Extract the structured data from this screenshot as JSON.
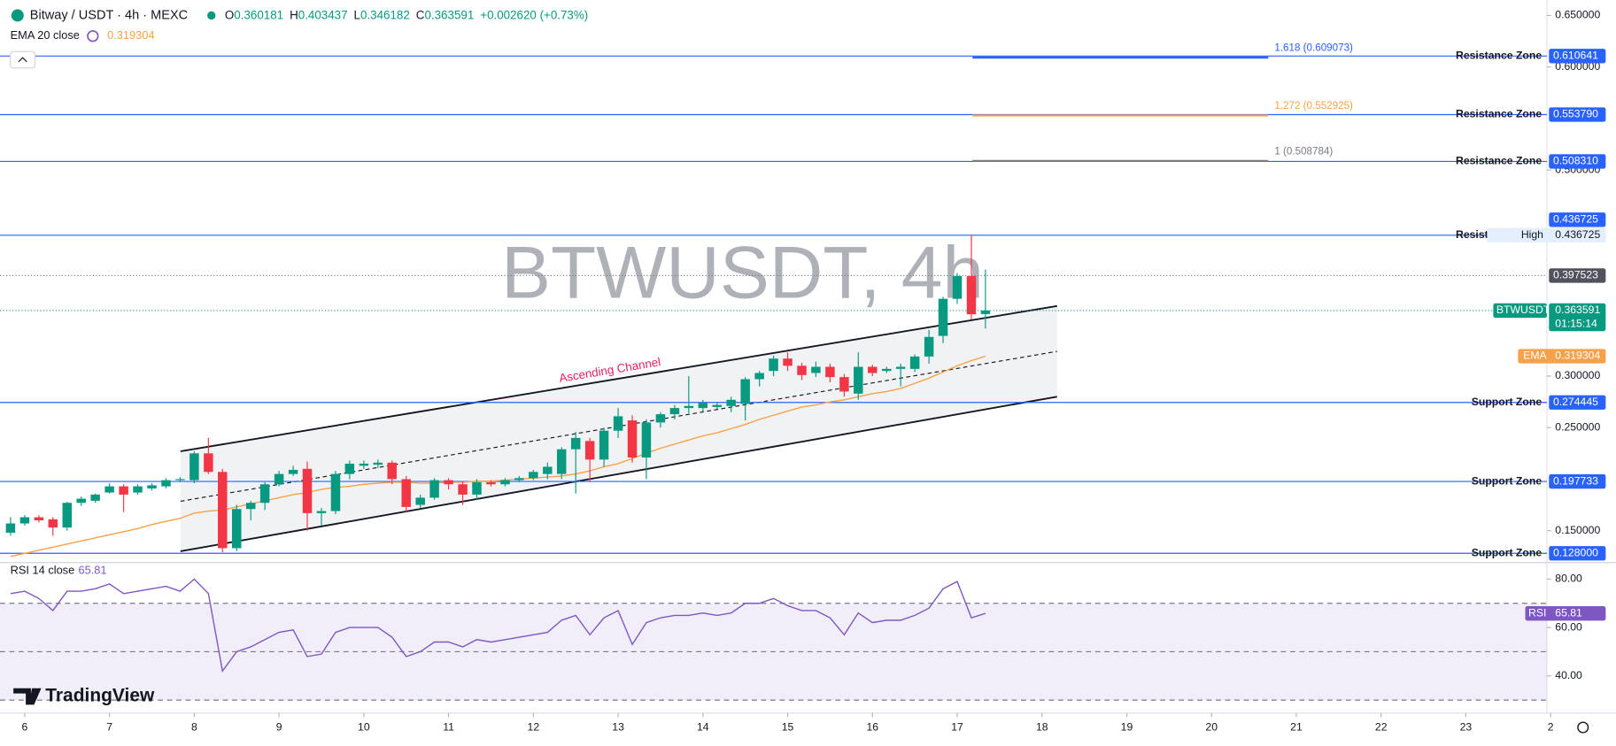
{
  "chart_data": {
    "type": "candlestick",
    "title": "Bitway / USDT · 4h · MEXC",
    "watermark": "BTWUSDT, 4h",
    "brand": "TradingView",
    "ohlc_legend": [
      {
        "name": "O",
        "value": 0.360181
      },
      {
        "name": "H",
        "value": 0.403437
      },
      {
        "name": "L",
        "value": 0.346182
      },
      {
        "name": "C",
        "value": 0.363591
      }
    ],
    "change_label": "+0.002620 (+0.73%)",
    "up_color": "#089981",
    "down_color": "#f23645",
    "x": [
      5.833,
      6,
      6.167,
      6.333,
      6.5,
      6.667,
      6.833,
      7,
      7.167,
      7.333,
      7.5,
      7.667,
      7.833,
      8,
      8.167,
      8.333,
      8.5,
      8.667,
      8.833,
      9,
      9.167,
      9.333,
      9.5,
      9.667,
      9.833,
      10,
      10.167,
      10.333,
      10.5,
      10.667,
      10.833,
      11,
      11.167,
      11.333,
      11.5,
      11.667,
      11.833,
      12,
      12.167,
      12.333,
      12.5,
      12.667,
      12.833,
      13,
      13.167,
      13.333,
      13.5,
      13.667,
      13.833,
      14,
      14.167,
      14.333,
      14.5,
      14.667,
      14.833,
      15,
      15.167,
      15.333,
      15.5,
      15.667,
      15.833,
      16,
      16.167,
      16.333,
      16.5,
      16.667,
      16.833,
      17,
      17.167,
      17.333
    ],
    "open": [
      0.148,
      0.157,
      0.163,
      0.161,
      0.153,
      0.177,
      0.179,
      0.187,
      0.193,
      0.187,
      0.191,
      0.193,
      0.199,
      0.199,
      0.225,
      0.207,
      0.133,
      0.171,
      0.177,
      0.195,
      0.205,
      0.21,
      0.167,
      0.169,
      0.205,
      0.213,
      0.214,
      0.216,
      0.2,
      0.175,
      0.182,
      0.199,
      0.195,
      0.185,
      0.197,
      0.195,
      0.199,
      0.201,
      0.205,
      0.205,
      0.229,
      0.237,
      0.219,
      0.247,
      0.257,
      0.221,
      0.255,
      0.263,
      0.269,
      0.269,
      0.27,
      0.271,
      0.273,
      0.297,
      0.305,
      0.317,
      0.31,
      0.303,
      0.309,
      0.299,
      0.283,
      0.309,
      0.305,
      0.307,
      0.307,
      0.319,
      0.339,
      0.375,
      0.397,
      0.360181
    ],
    "high": [
      0.163,
      0.165,
      0.165,
      0.163,
      0.178,
      0.183,
      0.186,
      0.196,
      0.195,
      0.195,
      0.196,
      0.201,
      0.202,
      0.227,
      0.24,
      0.21,
      0.175,
      0.179,
      0.197,
      0.208,
      0.213,
      0.217,
      0.172,
      0.208,
      0.218,
      0.218,
      0.219,
      0.218,
      0.203,
      0.185,
      0.201,
      0.201,
      0.198,
      0.2,
      0.199,
      0.201,
      0.203,
      0.209,
      0.216,
      0.231,
      0.246,
      0.24,
      0.25,
      0.269,
      0.262,
      0.258,
      0.265,
      0.272,
      0.3,
      0.277,
      0.275,
      0.28,
      0.299,
      0.305,
      0.32,
      0.323,
      0.313,
      0.314,
      0.312,
      0.302,
      0.323,
      0.311,
      0.309,
      0.312,
      0.321,
      0.345,
      0.377,
      0.4,
      0.437,
      0.403437
    ],
    "low": [
      0.145,
      0.155,
      0.158,
      0.145,
      0.15,
      0.174,
      0.177,
      0.186,
      0.168,
      0.185,
      0.189,
      0.191,
      0.197,
      0.196,
      0.205,
      0.129,
      0.13,
      0.16,
      0.17,
      0.193,
      0.203,
      0.15,
      0.155,
      0.166,
      0.2,
      0.21,
      0.211,
      0.195,
      0.168,
      0.172,
      0.18,
      0.19,
      0.175,
      0.18,
      0.193,
      0.193,
      0.197,
      0.199,
      0.2,
      0.2,
      0.186,
      0.197,
      0.212,
      0.24,
      0.216,
      0.2,
      0.25,
      0.258,
      0.264,
      0.265,
      0.268,
      0.265,
      0.257,
      0.29,
      0.3,
      0.305,
      0.296,
      0.299,
      0.294,
      0.28,
      0.277,
      0.3,
      0.303,
      0.29,
      0.304,
      0.312,
      0.332,
      0.37,
      0.355,
      0.346182
    ],
    "close": [
      0.157,
      0.163,
      0.16,
      0.153,
      0.177,
      0.181,
      0.185,
      0.193,
      0.185,
      0.193,
      0.194,
      0.199,
      0.2,
      0.225,
      0.207,
      0.133,
      0.171,
      0.177,
      0.195,
      0.205,
      0.209,
      0.167,
      0.169,
      0.205,
      0.215,
      0.215,
      0.216,
      0.2,
      0.173,
      0.182,
      0.199,
      0.195,
      0.185,
      0.197,
      0.195,
      0.199,
      0.201,
      0.207,
      0.212,
      0.229,
      0.24,
      0.219,
      0.247,
      0.261,
      0.221,
      0.255,
      0.263,
      0.269,
      0.271,
      0.274,
      0.272,
      0.277,
      0.297,
      0.303,
      0.317,
      0.31,
      0.301,
      0.309,
      0.299,
      0.285,
      0.309,
      0.303,
      0.307,
      0.309,
      0.319,
      0.338,
      0.375,
      0.397,
      0.36,
      0.363591
    ],
    "xlim": [
      5.745,
      23.956
    ],
    "xticks": [
      6,
      7,
      8,
      9,
      10,
      11,
      12,
      13,
      14,
      15,
      16,
      17,
      18,
      19,
      20,
      21,
      22,
      23,
      {
        "value": 24,
        "label": "2"
      }
    ],
    "ylim": [
      0.12,
      0.665
    ],
    "yticks": [
      {
        "value": 0.65,
        "label": "0.650000"
      },
      {
        "value": 0.6,
        "label": "0.600000"
      },
      {
        "value": 0.5,
        "label": "0.500000"
      },
      {
        "value": 0.3,
        "label": "0.300000"
      },
      {
        "value": 0.25,
        "label": "0.250000"
      },
      {
        "value": 0.15,
        "label": "0.150000"
      }
    ],
    "series": [
      {
        "name": "EMA 20 close",
        "tag": "EMA",
        "color": "#f7a24a",
        "values": [
          0.125,
          0.128,
          0.131,
          0.134,
          0.137,
          0.14,
          0.143,
          0.146,
          0.149,
          0.152,
          0.156,
          0.159,
          0.162,
          0.167,
          0.169,
          0.17,
          0.173,
          0.176,
          0.179,
          0.182,
          0.185,
          0.187,
          0.19,
          0.192,
          0.193,
          0.195,
          0.196,
          0.197,
          0.197,
          0.196,
          0.196,
          0.197,
          0.197,
          0.198,
          0.198,
          0.199,
          0.2,
          0.201,
          0.202,
          0.203,
          0.205,
          0.208,
          0.212,
          0.215,
          0.22,
          0.225,
          0.23,
          0.234,
          0.238,
          0.242,
          0.245,
          0.249,
          0.253,
          0.258,
          0.262,
          0.266,
          0.27,
          0.272,
          0.275,
          0.277,
          0.28,
          0.283,
          0.285,
          0.288,
          0.293,
          0.298,
          0.304,
          0.31,
          0.315,
          0.319304
        ]
      }
    ],
    "levels": [
      {
        "name": "Resistance Zone",
        "value": 0.610641,
        "label": "0.610641"
      },
      {
        "name": "Resistance Zone",
        "value": 0.55379,
        "label": "0.553790"
      },
      {
        "name": "Resistance Zone",
        "value": 0.50831,
        "label": "0.508310"
      },
      {
        "name": "Resistance Zone",
        "value": 0.436725,
        "label": "0.436725"
      },
      {
        "name": "Support Zone",
        "value": 0.274445,
        "label": "0.274445"
      },
      {
        "name": "Support Zone",
        "value": 0.197733,
        "label": "0.197733"
      },
      {
        "name": "Support Zone",
        "value": 0.128,
        "label": "0.128000"
      }
    ],
    "level_color": "#2962ff",
    "fib_x": [
      17.18,
      20.67
    ],
    "fib": [
      {
        "label": "1.618 (0.609073)",
        "value": 0.609073,
        "color": "#2962ff"
      },
      {
        "label": "1.272 (0.552925)",
        "value": 0.552925,
        "color": "#f7a24a"
      },
      {
        "label": "1 (0.508784)",
        "value": 0.508784,
        "color": "#787b86"
      }
    ],
    "high_marker": {
      "name": "High",
      "value": 0.436725
    },
    "prev_price": {
      "value": 0.397523
    },
    "price_tag": {
      "name": "BTWUSDT",
      "value": 0.363591,
      "countdown": "01:15:14"
    },
    "channel": {
      "label": "Ascending Channel",
      "x": [
        7.837,
        18.178
      ],
      "upper": [
        0.227,
        0.368
      ],
      "lower": [
        0.13,
        0.28
      ]
    },
    "rsi": {
      "name": "RSI 14 close",
      "tag": "RSI",
      "color": "#7e57c2",
      "values": [
        74,
        75,
        72,
        67,
        75,
        75,
        76,
        78,
        74,
        75,
        76,
        77,
        75,
        80,
        74,
        42,
        50,
        52,
        55,
        58,
        59,
        48,
        49,
        58,
        60,
        60,
        60,
        56,
        48,
        50,
        54,
        54,
        52,
        55,
        54,
        55,
        56,
        57,
        58,
        63,
        65,
        57,
        64,
        67,
        53,
        62,
        64,
        65,
        65,
        66,
        65,
        66,
        70,
        70,
        72,
        69,
        67,
        67,
        64,
        57,
        66,
        62,
        63,
        63,
        65,
        68,
        76,
        79,
        64,
        65.81
      ],
      "ylim": [
        25.5,
        86.4
      ],
      "yticks": [
        {
          "value": 80,
          "label": "80.00"
        },
        {
          "value": 60,
          "label": "60.00"
        },
        {
          "value": 40,
          "label": "40.00"
        }
      ],
      "bands": [
        70,
        50,
        30
      ]
    }
  }
}
